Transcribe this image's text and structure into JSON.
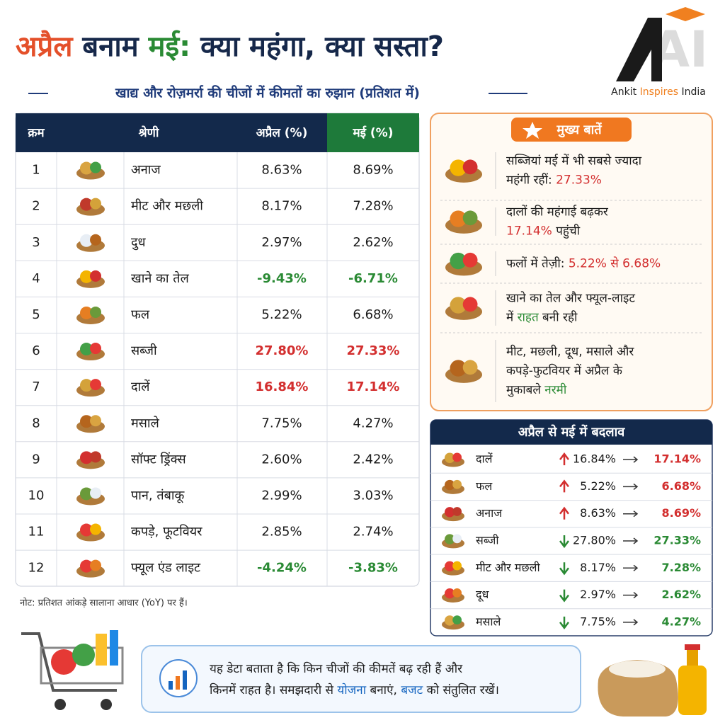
{
  "header": {
    "title": [
      {
        "text": "अप्रैल",
        "color": "#e4502a"
      },
      {
        "text": " बनाम ",
        "color": "#16284a"
      },
      {
        "text": "मई:",
        "color": "#2a8a34"
      },
      {
        "text": " क्या महंगा, क्या सस्ता?",
        "color": "#16284a"
      }
    ],
    "subtitle": "खाद्य और रोज़मर्रा की चीजों में कीमतों का रुझान (प्रतिशत में)"
  },
  "logo": {
    "mark": "AI",
    "name": [
      {
        "text": "Ankit "
      },
      {
        "text": "Inspires",
        "color": "#f08020"
      },
      {
        "text": " India"
      }
    ]
  },
  "table": {
    "columns": [
      "क्रम",
      "श्रेणी",
      "अप्रैल (%)",
      "मई (%)"
    ],
    "rows": [
      {
        "cells": [
          "1",
          "अनाज",
          "8.63%",
          "8.69%"
        ]
      },
      {
        "cells": [
          "2",
          "मीट और मछली",
          "8.17%",
          "7.28%"
        ]
      },
      {
        "cells": [
          "3",
          "दुध",
          "2.97%",
          "2.62%"
        ]
      },
      {
        "cells": [
          "4",
          "खाने का तेल",
          "-9.43%",
          "-6.71%"
        ],
        "color": "#2a8a34"
      },
      {
        "cells": [
          "5",
          "फल",
          "5.22%",
          "6.68%"
        ]
      },
      {
        "cells": [
          "6",
          "सब्जी",
          "27.80%",
          "27.33%"
        ],
        "color": "#d32f2f"
      },
      {
        "cells": [
          "7",
          "दालें",
          "16.84%",
          "17.14%"
        ],
        "color": "#d32f2f"
      },
      {
        "cells": [
          "8",
          "मसाले",
          "7.75%",
          "4.27%"
        ]
      },
      {
        "cells": [
          "9",
          "सॉफ्ट ड्रिंक्स",
          "2.60%",
          "2.42%"
        ]
      },
      {
        "cells": [
          "10",
          "पान, तंबाकू",
          "2.99%",
          "3.03%"
        ]
      },
      {
        "cells": [
          "11",
          "कपड़े, फूटवियर",
          "2.85%",
          "2.74%"
        ]
      },
      {
        "cells": [
          "12",
          "फ्यूल एंड लाइट",
          "-4.24%",
          "-3.83%"
        ],
        "color": "#2a8a34"
      }
    ]
  },
  "note": "नोट: प्रतिशत आंकड़े सालाना आधार (YoY) पर हैं।",
  "highlights": {
    "title": "मुख्य बातें",
    "items": [
      [
        [
          {
            "text": "सब्जियां मई में भी सबसे ज्यादा"
          }
        ],
        [
          {
            "text": "महंगी रहीं: "
          },
          {
            "text": "27.33%",
            "color": "#d32f2f"
          }
        ]
      ],
      [
        [
          {
            "text": "दालों की महंगाई बढ़कर"
          }
        ],
        [
          {
            "text": "17.14%",
            "color": "#d32f2f"
          },
          {
            "text": " पहुंची"
          }
        ]
      ],
      [
        [
          {
            "text": "फलों में तेज़ी: "
          },
          {
            "text": "5.22% से 6.68%",
            "color": "#d32f2f"
          }
        ]
      ],
      [
        [
          {
            "text": "खाने का तेल और फ्यूल-लाइट"
          }
        ],
        [
          {
            "text": "में "
          },
          {
            "text": "राहत",
            "color": "#2a8a34"
          },
          {
            "text": " बनी रही"
          }
        ]
      ],
      [
        [
          {
            "text": "मीट, मछली, दूध, मसाले और"
          }
        ],
        [
          {
            "text": "कपड़े-फुटवियर में अप्रैल के"
          }
        ],
        [
          {
            "text": "मुकाबले "
          },
          {
            "text": "नरमी",
            "color": "#2a8a34"
          }
        ]
      ]
    ]
  },
  "changes": {
    "title": "अप्रैल से मई में बदलाव",
    "rows": [
      {
        "label": "दालें",
        "direction": "up",
        "from": "16.84%",
        "to": "17.14%",
        "color": "#d32f2f"
      },
      {
        "label": "फल",
        "direction": "up",
        "from": "5.22%",
        "to": "6.68%",
        "color": "#d32f2f"
      },
      {
        "label": "अनाज",
        "direction": "up",
        "from": "8.63%",
        "to": "8.69%",
        "color": "#d32f2f"
      },
      {
        "label": "सब्जी",
        "direction": "down",
        "from": "27.80%",
        "to": "27.33%",
        "color": "#2a8a34"
      },
      {
        "label": "मीट और मछली",
        "direction": "down",
        "from": "8.17%",
        "to": "7.28%",
        "color": "#2a8a34"
      },
      {
        "label": "दूध",
        "direction": "down",
        "from": "2.97%",
        "to": "2.62%",
        "color": "#2a8a34"
      },
      {
        "label": "मसाले",
        "direction": "down",
        "from": "7.75%",
        "to": "4.27%",
        "color": "#2a8a34"
      }
    ]
  },
  "footer": {
    "lines": [
      [
        {
          "text": "यह डेटा बताता है कि किन चीजों की कीमतें बढ़ रही हैं और"
        }
      ],
      [
        {
          "text": "किनमें राहत है। समझदारी से "
        },
        {
          "text": "योजना",
          "color": "#1565c0"
        },
        {
          "text": " बनाएं, "
        },
        {
          "text": "बजट",
          "color": "#1565c0"
        },
        {
          "text": " को संतुलित रखें।"
        }
      ]
    ]
  }
}
